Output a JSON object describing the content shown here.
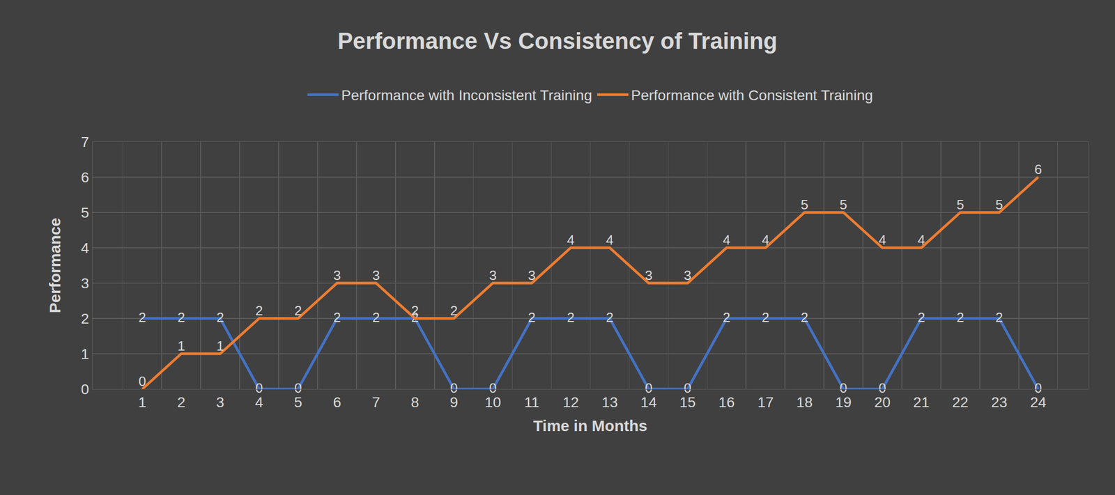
{
  "chart_data": {
    "type": "line",
    "title": "Performance Vs Consistency of Training",
    "x_label": "Time in Months",
    "y_label": "Performance",
    "categories": [
      "1",
      "2",
      "3",
      "4",
      "5",
      "6",
      "7",
      "8",
      "9",
      "10",
      "11",
      "12",
      "13",
      "14",
      "15",
      "16",
      "17",
      "18",
      "19",
      "20",
      "21",
      "22",
      "23",
      "24"
    ],
    "series": [
      {
        "name": "Performance with Inconsistent Training",
        "color": "#4472c4",
        "values": [
          2,
          2,
          2,
          0,
          0,
          2,
          2,
          2,
          0,
          0,
          2,
          2,
          2,
          0,
          0,
          2,
          2,
          2,
          0,
          0,
          2,
          2,
          2,
          0
        ]
      },
      {
        "name": "Performance with Consistent Training",
        "color": "#ed7d31",
        "values": [
          0,
          1,
          1,
          2,
          2,
          3,
          3,
          2,
          2,
          3,
          3,
          4,
          4,
          3,
          3,
          4,
          4,
          5,
          5,
          4,
          4,
          5,
          5,
          6
        ]
      }
    ],
    "ylim": [
      0,
      7
    ],
    "yticks": [
      0,
      1,
      2,
      3,
      4,
      5,
      6,
      7
    ],
    "grid": true,
    "legend": "top",
    "data_labels": true
  }
}
